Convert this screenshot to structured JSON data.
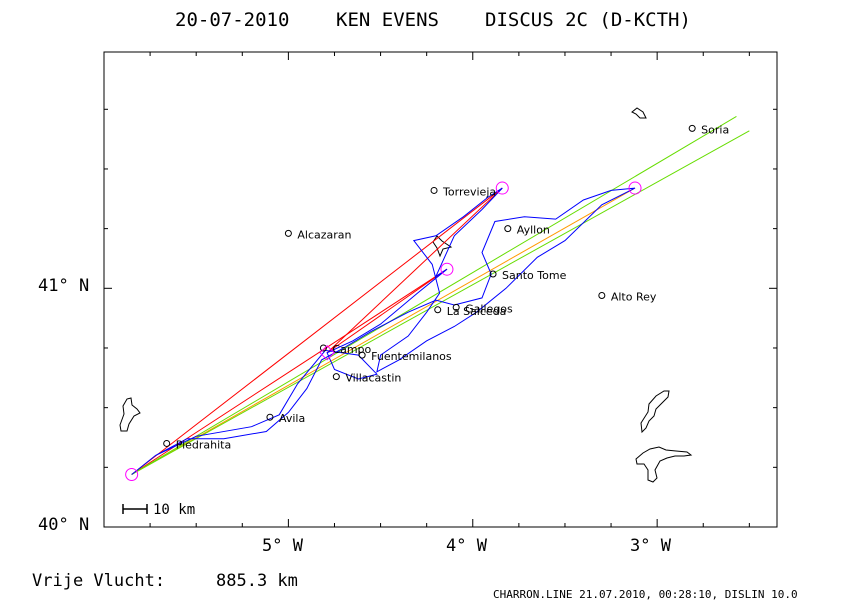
{
  "title": {
    "date": "20-07-2010",
    "pilot": "KEN EVENS",
    "glider": "DISCUS 2C (D-KCTH)"
  },
  "axes": {
    "x_ticks": [
      "5° W",
      "4° W",
      "3° W"
    ],
    "y_ticks": [
      "41° N",
      "40° N"
    ]
  },
  "scale_bar": {
    "label": "10 km"
  },
  "footer": {
    "distance_label": "Vrije Vlucht:",
    "distance_value": "885.3 km",
    "credit": "CHARRON.LINE 21.07.2010, 00:28:10, DISLIN 10.0"
  },
  "towns": [
    {
      "name": "Soria",
      "lon": -2.81,
      "lat": 41.67
    },
    {
      "name": "Torrevieja",
      "lon": -4.21,
      "lat": 41.41
    },
    {
      "name": "Ayllon",
      "lon": -3.81,
      "lat": 41.25
    },
    {
      "name": "Alcazaran",
      "lon": -5.0,
      "lat": 41.23
    },
    {
      "name": "Santo Tome",
      "lon": -3.89,
      "lat": 41.06
    },
    {
      "name": "Alto Rey",
      "lon": -3.3,
      "lat": 40.97
    },
    {
      "name": "La Salceda",
      "lon": -4.19,
      "lat": 40.91
    },
    {
      "name": "Gallegos",
      "lon": -4.09,
      "lat": 40.92
    },
    {
      "name": "Campo",
      "lon": -4.81,
      "lat": 40.75
    },
    {
      "name": "Fuentemilanos",
      "lon": -4.6,
      "lat": 40.72
    },
    {
      "name": "Villacastin",
      "lon": -4.74,
      "lat": 40.63
    },
    {
      "name": "Avila",
      "lon": -5.1,
      "lat": 40.46
    },
    {
      "name": "Piedrahita",
      "lon": -5.66,
      "lat": 40.35
    }
  ],
  "turnpoints": [
    {
      "lon": -5.85,
      "lat": 40.22
    },
    {
      "lon": -3.12,
      "lat": 41.42
    },
    {
      "lon": -3.84,
      "lat": 41.42
    },
    {
      "lon": -4.14,
      "lat": 41.08
    },
    {
      "lon": -4.79,
      "lat": 40.73
    }
  ],
  "colors": {
    "track": "#0000ff",
    "task_red": "#ff0000",
    "task_green": "#66dd00",
    "task_orange": "#ff9900",
    "turnpoint": "#ff00ff",
    "axis": "#000000"
  }
}
